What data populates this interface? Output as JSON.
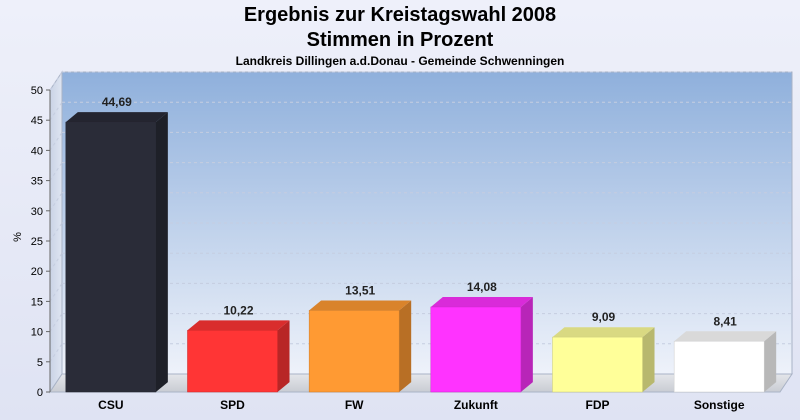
{
  "chart_data": {
    "type": "bar",
    "title": "Ergebnis zur Kreistagswahl 2008",
    "subtitle": "Stimmen in Prozent",
    "caption": "Landkreis Dillingen a.d.Donau - Gemeinde Schwenningen",
    "ylabel": "%",
    "xlabel": "",
    "ylim": [
      0,
      50
    ],
    "yticks": [
      0,
      5,
      10,
      15,
      20,
      25,
      30,
      35,
      40,
      45,
      50
    ],
    "categories": [
      "CSU",
      "SPD",
      "FW",
      "Zukunft",
      "FDP",
      "Sonstige"
    ],
    "values": [
      44.69,
      10.22,
      13.51,
      14.08,
      9.09,
      8.41
    ],
    "value_labels": [
      "44,69",
      "10,22",
      "13,51",
      "14,08",
      "9,09",
      "8,41"
    ],
    "colors": [
      "#2a2c38",
      "#ff3535",
      "#ff9a33",
      "#ff33ff",
      "#ffff99",
      "#ffffff"
    ],
    "grid": true,
    "legend": "none"
  }
}
